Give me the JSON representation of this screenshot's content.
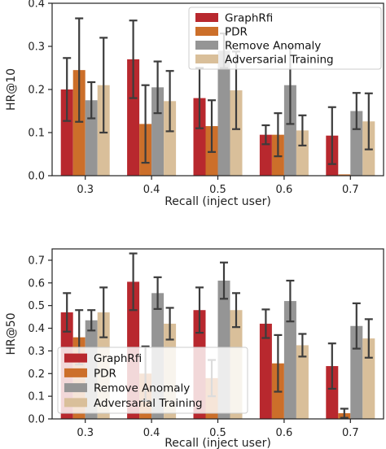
{
  "colors": {
    "GraphRfi": "#b8282e",
    "PDR": "#cc6f2a",
    "Remove Anomaly": "#959595",
    "Adversarial Training": "#d9bf9a",
    "errorbar": "#3c3c3c"
  },
  "chart_data": [
    {
      "type": "bar",
      "title": "",
      "xlabel": "Recall (inject user)",
      "ylabel": "HR@10",
      "categories": [
        "0.3",
        "0.4",
        "0.5",
        "0.6",
        "0.7"
      ],
      "ylim": [
        0,
        0.4
      ],
      "yticks": [
        "0.0",
        "0.1",
        "0.2",
        "0.3",
        "0.4"
      ],
      "grid": false,
      "legend_position": "top-right",
      "series": [
        {
          "name": "GraphRfi",
          "values": [
            0.2,
            0.27,
            0.18,
            0.095,
            0.093
          ],
          "errors": [
            0.073,
            0.09,
            0.07,
            0.022,
            0.066
          ]
        },
        {
          "name": "PDR",
          "values": [
            0.245,
            0.12,
            0.115,
            0.095,
            0.003
          ],
          "errors": [
            0.12,
            0.09,
            0.06,
            0.05,
            0.0
          ]
        },
        {
          "name": "Remove Anomaly",
          "values": [
            0.175,
            0.205,
            0.29,
            0.21,
            0.15
          ],
          "errors": [
            0.042,
            0.06,
            0.04,
            0.09,
            0.042
          ]
        },
        {
          "name": "Adversarial Training",
          "values": [
            0.21,
            0.173,
            0.198,
            0.105,
            0.126
          ],
          "errors": [
            0.11,
            0.07,
            0.09,
            0.035,
            0.065
          ]
        }
      ]
    },
    {
      "type": "bar",
      "title": "",
      "xlabel": "Recall (inject user)",
      "ylabel": "HR@50",
      "categories": [
        "0.3",
        "0.4",
        "0.5",
        "0.6",
        "0.7"
      ],
      "ylim": [
        0,
        0.75
      ],
      "yticks": [
        "0.0",
        "0.1",
        "0.2",
        "0.3",
        "0.4",
        "0.5",
        "0.6",
        "0.7"
      ],
      "grid": false,
      "legend_position": "bottom-left",
      "series": [
        {
          "name": "GraphRfi",
          "values": [
            0.47,
            0.605,
            0.48,
            0.42,
            0.233
          ],
          "errors": [
            0.085,
            0.125,
            0.1,
            0.063,
            0.1
          ]
        },
        {
          "name": "PDR",
          "values": [
            0.36,
            0.2,
            0.18,
            0.245,
            0.025
          ],
          "errors": [
            0.12,
            0.12,
            0.08,
            0.125,
            0.02
          ]
        },
        {
          "name": "Remove Anomaly",
          "values": [
            0.435,
            0.555,
            0.61,
            0.52,
            0.41
          ],
          "errors": [
            0.045,
            0.07,
            0.08,
            0.09,
            0.1
          ]
        },
        {
          "name": "Adversarial Training",
          "values": [
            0.47,
            0.42,
            0.48,
            0.325,
            0.355
          ],
          "errors": [
            0.11,
            0.07,
            0.075,
            0.05,
            0.085
          ]
        }
      ]
    }
  ]
}
